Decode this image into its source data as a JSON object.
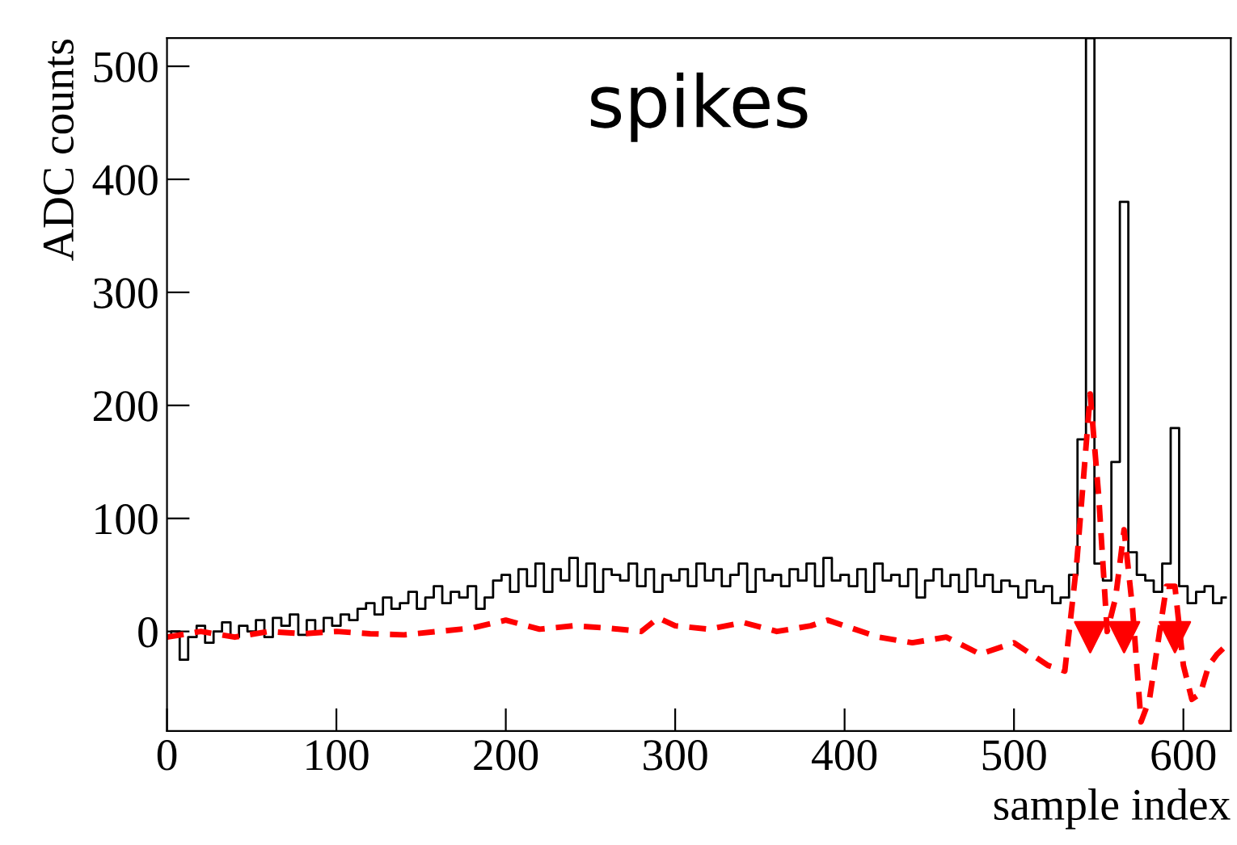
{
  "chart_data": {
    "type": "step",
    "title": "spikes",
    "xlabel": "sample index",
    "ylabel": "ADC counts",
    "xlim": [
      0,
      628
    ],
    "ylim": [
      -88,
      525
    ],
    "xticks": [
      0,
      100,
      200,
      300,
      400,
      500,
      600
    ],
    "yticks": [
      0,
      100,
      200,
      300,
      400,
      500
    ],
    "grid": false,
    "legend": false,
    "series": [
      {
        "color": "#000000",
        "line_style": "solid",
        "marker": "none",
        "x": [
          0,
          5,
          10,
          15,
          20,
          25,
          30,
          35,
          40,
          45,
          50,
          55,
          60,
          65,
          70,
          75,
          80,
          85,
          90,
          95,
          100,
          105,
          110,
          115,
          120,
          125,
          130,
          135,
          140,
          145,
          150,
          155,
          160,
          165,
          170,
          175,
          180,
          185,
          190,
          195,
          200,
          205,
          210,
          215,
          220,
          225,
          230,
          235,
          240,
          245,
          250,
          255,
          260,
          265,
          270,
          275,
          280,
          285,
          290,
          295,
          300,
          305,
          310,
          315,
          320,
          325,
          330,
          335,
          340,
          345,
          350,
          355,
          360,
          365,
          370,
          375,
          380,
          385,
          390,
          395,
          400,
          405,
          410,
          415,
          420,
          425,
          430,
          435,
          440,
          445,
          450,
          455,
          460,
          465,
          470,
          475,
          480,
          485,
          490,
          495,
          500,
          505,
          510,
          515,
          520,
          525,
          530,
          535,
          540,
          545,
          550,
          555,
          560,
          565,
          570,
          575,
          580,
          585,
          590,
          595,
          600,
          605,
          610,
          615,
          620,
          625
        ],
        "values": [
          -5,
          0,
          -25,
          -5,
          5,
          -10,
          0,
          8,
          -5,
          5,
          0,
          10,
          -5,
          12,
          5,
          15,
          -3,
          10,
          0,
          12,
          5,
          15,
          10,
          20,
          25,
          15,
          30,
          20,
          25,
          35,
          20,
          30,
          40,
          25,
          35,
          30,
          40,
          20,
          30,
          45,
          50,
          35,
          55,
          40,
          60,
          35,
          55,
          45,
          65,
          40,
          60,
          35,
          55,
          50,
          45,
          60,
          40,
          55,
          35,
          50,
          45,
          55,
          40,
          60,
          45,
          55,
          40,
          50,
          60,
          35,
          55,
          45,
          50,
          40,
          55,
          45,
          60,
          40,
          65,
          45,
          50,
          40,
          55,
          35,
          60,
          45,
          50,
          40,
          55,
          30,
          45,
          55,
          40,
          50,
          35,
          55,
          40,
          50,
          35,
          45,
          40,
          30,
          45,
          35,
          40,
          25,
          30,
          50,
          170,
          525,
          60,
          45,
          150,
          380,
          70,
          50,
          45,
          35,
          60,
          180,
          40,
          25,
          35,
          40,
          25,
          30
        ]
      },
      {
        "type": "line",
        "color": "#ff0000",
        "line_style": "dashed",
        "marker": "none",
        "x": [
          0,
          20,
          40,
          60,
          80,
          100,
          120,
          140,
          160,
          180,
          200,
          220,
          240,
          260,
          280,
          290,
          300,
          320,
          340,
          360,
          380,
          390,
          400,
          420,
          440,
          460,
          480,
          500,
          520,
          530,
          537,
          545,
          550,
          555,
          560,
          565,
          570,
          575,
          580,
          585,
          590,
          595,
          600,
          605,
          610,
          615,
          620,
          627
        ],
        "values": [
          -5,
          0,
          -5,
          0,
          -2,
          0,
          -2,
          -3,
          0,
          3,
          10,
          2,
          5,
          3,
          0,
          12,
          5,
          2,
          8,
          0,
          5,
          10,
          5,
          -5,
          -10,
          -5,
          -20,
          -10,
          -30,
          -35,
          60,
          210,
          120,
          0,
          30,
          90,
          20,
          -80,
          -60,
          -10,
          40,
          40,
          -30,
          -60,
          -55,
          -30,
          -20,
          -10
        ]
      },
      {
        "type": "scatter",
        "color": "#ff0000",
        "marker": "triangle",
        "x": [
          545,
          565,
          595
        ],
        "values": [
          -5,
          -5,
          -5
        ]
      }
    ]
  }
}
